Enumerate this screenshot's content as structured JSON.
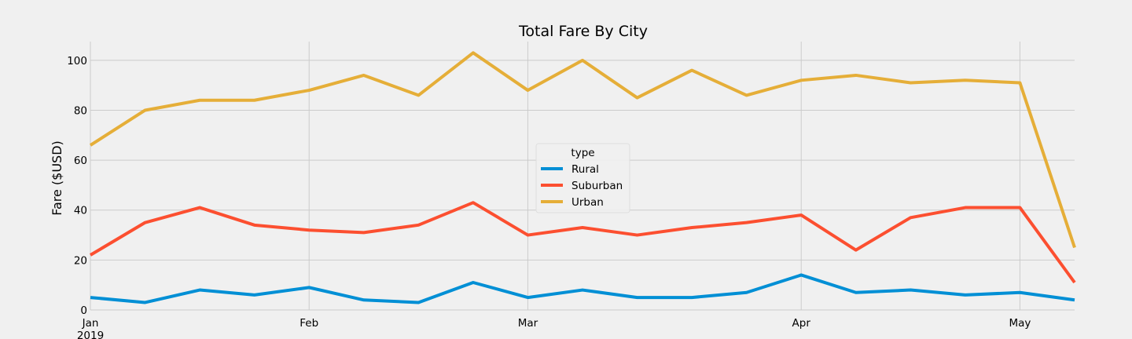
{
  "chart_data": {
    "type": "line",
    "title": "Total Fare By City",
    "xlabel": "",
    "ylabel": "Fare ($USD)",
    "x": [
      "2019-01-06",
      "2019-01-13",
      "2019-01-20",
      "2019-01-27",
      "2019-02-03",
      "2019-02-10",
      "2019-02-17",
      "2019-02-24",
      "2019-03-03",
      "2019-03-10",
      "2019-03-17",
      "2019-03-24",
      "2019-03-31",
      "2019-04-07",
      "2019-04-14",
      "2019-04-21",
      "2019-04-28",
      "2019-05-05",
      "2019-05-12"
    ],
    "xlim": [
      "2019-01-06",
      "2019-05-12"
    ],
    "ylim": [
      0,
      107.5
    ],
    "yticks": [
      0,
      20,
      40,
      60,
      80,
      100
    ],
    "xticks": [
      {
        "date": "2019-01-06",
        "label": "Jan",
        "sublabel": "2019"
      },
      {
        "date": "2019-02-03",
        "label": "Feb",
        "sublabel": ""
      },
      {
        "date": "2019-03-03",
        "label": "Mar",
        "sublabel": ""
      },
      {
        "date": "2019-04-07",
        "label": "Apr",
        "sublabel": ""
      },
      {
        "date": "2019-05-05",
        "label": "May",
        "sublabel": ""
      }
    ],
    "grid": true,
    "legend": {
      "title": "type",
      "position": "center"
    },
    "series": [
      {
        "name": "Rural",
        "color": "#008fd5",
        "values": [
          5,
          3,
          8,
          6,
          9,
          4,
          3,
          11,
          5,
          8,
          5,
          5,
          7,
          14,
          7,
          8,
          6,
          7,
          4
        ]
      },
      {
        "name": "Suburban",
        "color": "#fc4f30",
        "values": [
          22,
          35,
          41,
          34,
          32,
          31,
          34,
          43,
          30,
          33,
          30,
          33,
          35,
          38,
          24,
          37,
          41,
          41,
          11
        ]
      },
      {
        "name": "Urban",
        "color": "#e5ae38",
        "values": [
          66,
          80,
          84,
          84,
          88,
          94,
          86,
          103,
          88,
          100,
          85,
          96,
          86,
          92,
          94,
          91,
          92,
          91,
          25
        ]
      }
    ]
  }
}
